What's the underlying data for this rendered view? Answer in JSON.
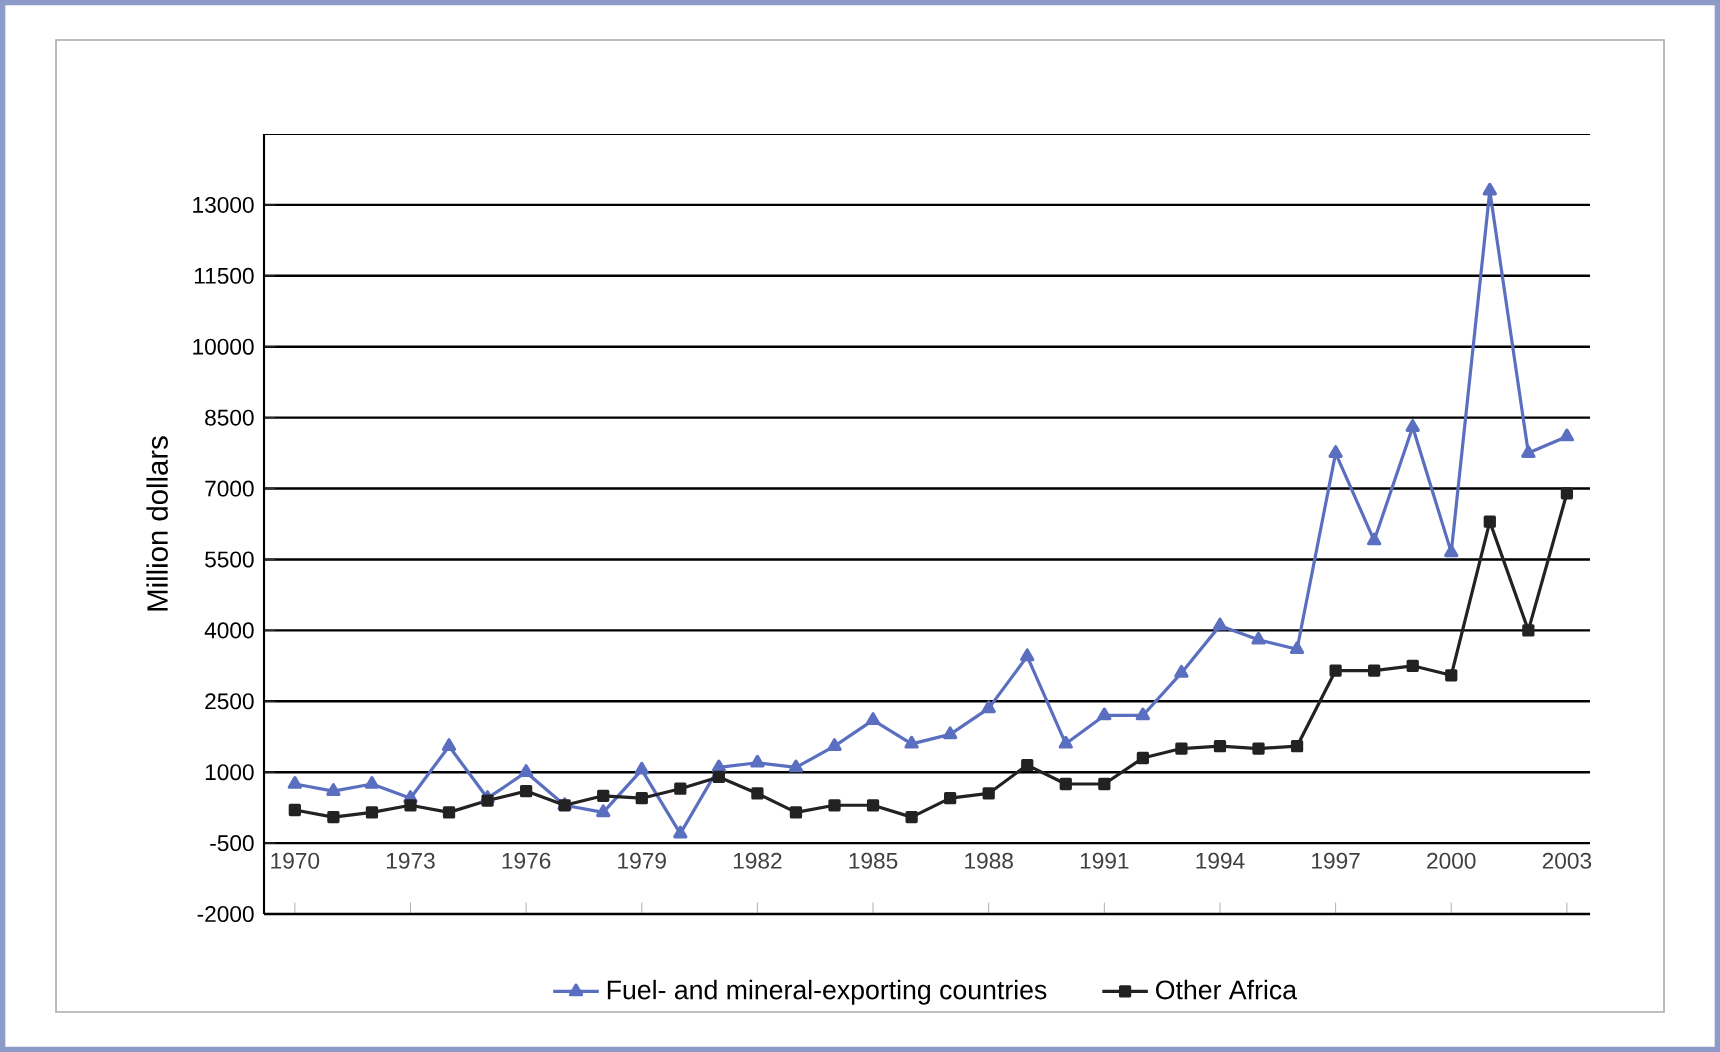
{
  "chart_data": {
    "type": "line",
    "ylabel": "Million dollars",
    "x": [
      1970,
      1971,
      1972,
      1973,
      1974,
      1975,
      1976,
      1977,
      1978,
      1979,
      1980,
      1981,
      1982,
      1983,
      1984,
      1985,
      1986,
      1987,
      1988,
      1989,
      1990,
      1991,
      1992,
      1993,
      1994,
      1995,
      1996,
      1997,
      1998,
      1999,
      2000,
      2001,
      2002,
      2003
    ],
    "series": [
      {
        "name": "Fuel- and mineral-exporting countries",
        "color": "#5a6fc0",
        "marker": "triangle",
        "values": [
          750,
          600,
          750,
          450,
          1550,
          450,
          1000,
          300,
          150,
          1050,
          -300,
          1100,
          1200,
          1100,
          1550,
          2100,
          1600,
          1800,
          2350,
          3450,
          1600,
          2200,
          2200,
          3100,
          4100,
          3800,
          3600,
          7750,
          5900,
          8300,
          5650,
          13300,
          7750,
          8100
        ]
      },
      {
        "name": "Other Africa",
        "color": "#222222",
        "marker": "square",
        "values": [
          200,
          50,
          150,
          300,
          150,
          400,
          600,
          300,
          500,
          450,
          650,
          900,
          550,
          150,
          300,
          300,
          50,
          450,
          550,
          1150,
          750,
          750,
          1300,
          1500,
          1550,
          1500,
          1550,
          3150,
          3150,
          3250,
          3050,
          6300,
          4000,
          6900
        ]
      }
    ],
    "xlim": [
      1969.2,
      2003.6
    ],
    "xticks": [
      1970,
      1973,
      1976,
      1979,
      1982,
      1985,
      1988,
      1991,
      1994,
      1997,
      2000,
      2003
    ],
    "ylim": [
      -2000,
      14500
    ],
    "yticks": [
      -2000,
      -500,
      1000,
      2500,
      4000,
      5500,
      7000,
      8500,
      10000,
      11500,
      13000
    ],
    "grid": "y",
    "legend": "bottom",
    "line_style": "solid"
  }
}
